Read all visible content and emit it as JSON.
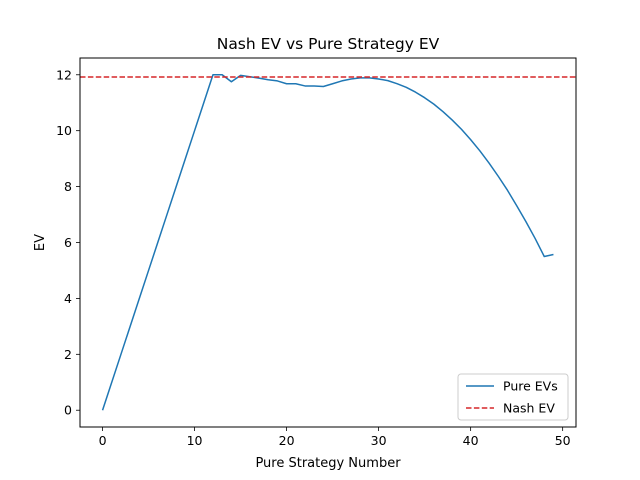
{
  "chart_data": {
    "type": "line",
    "title": "Nash EV vs Pure Strategy EV",
    "xlabel": "Pure Strategy Number",
    "ylabel": "EV",
    "xlim": [
      -2.45,
      51.45
    ],
    "ylim": [
      -0.6,
      12.6
    ],
    "xticks": [
      0,
      10,
      20,
      30,
      40,
      50
    ],
    "yticks": [
      0,
      2,
      4,
      6,
      8,
      10,
      12
    ],
    "grid": false,
    "legend_position": "lower-right",
    "series": [
      {
        "name": "Pure EVs",
        "style": "solid",
        "color": "#1f77b4",
        "x": [
          0,
          1,
          2,
          3,
          4,
          5,
          6,
          7,
          8,
          9,
          10,
          11,
          12,
          13,
          14,
          15,
          16,
          17,
          18,
          19,
          20,
          21,
          22,
          23,
          24,
          25,
          26,
          27,
          28,
          29,
          30,
          31,
          32,
          33,
          34,
          35,
          36,
          37,
          38,
          39,
          40,
          41,
          42,
          43,
          44,
          45,
          46,
          47,
          48,
          49
        ],
        "values": [
          0,
          1,
          2,
          3,
          4,
          5,
          6,
          7,
          8,
          9,
          10,
          11,
          12.0,
          12.0,
          11.75,
          11.98,
          11.93,
          11.88,
          11.82,
          11.78,
          11.68,
          11.68,
          11.6,
          11.6,
          11.58,
          11.68,
          11.78,
          11.85,
          11.89,
          11.89,
          11.85,
          11.79,
          11.68,
          11.55,
          11.38,
          11.18,
          10.95,
          10.68,
          10.38,
          10.05,
          9.68,
          9.28,
          8.84,
          8.37,
          7.87,
          7.32,
          6.75,
          6.15,
          5.5,
          5.57
        ]
      },
      {
        "name": "Nash EV",
        "style": "dashed",
        "color": "#d62728",
        "value": 11.92
      }
    ]
  }
}
